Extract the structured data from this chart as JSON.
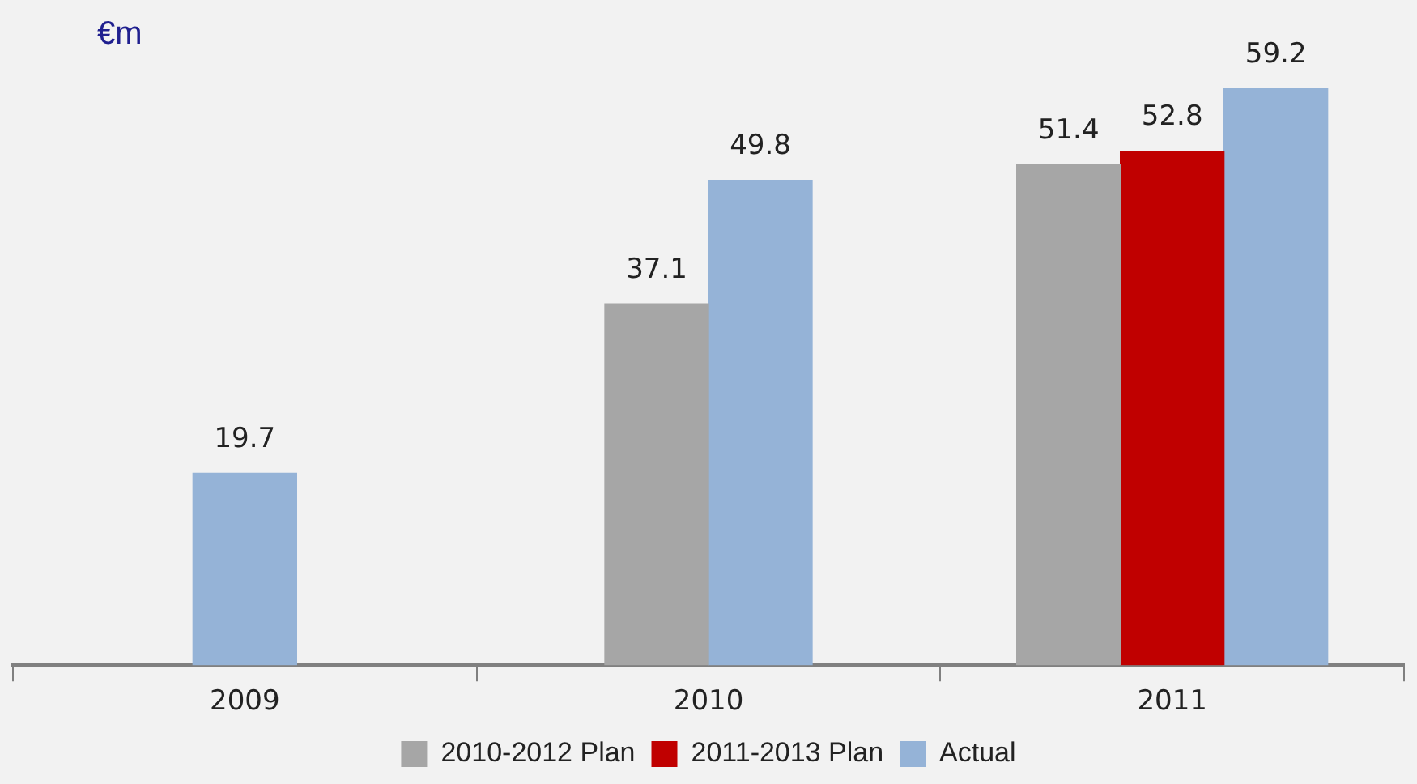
{
  "chart_data": {
    "type": "bar",
    "ylabel": "€m",
    "categories": [
      "2009",
      "2010",
      "2011"
    ],
    "series": [
      {
        "name": "2010-2012 Plan",
        "color": "#a6a6a6",
        "values": [
          null,
          37.1,
          51.4
        ]
      },
      {
        "name": "2011-2013 Plan",
        "color": "#c00000",
        "values": [
          null,
          null,
          52.8
        ]
      },
      {
        "name": "Actual",
        "color": "#95b3d7",
        "values": [
          19.7,
          49.8,
          59.2
        ]
      }
    ],
    "tick_labels": "x",
    "data_labels": true,
    "legend": "bottom",
    "grid": false
  }
}
